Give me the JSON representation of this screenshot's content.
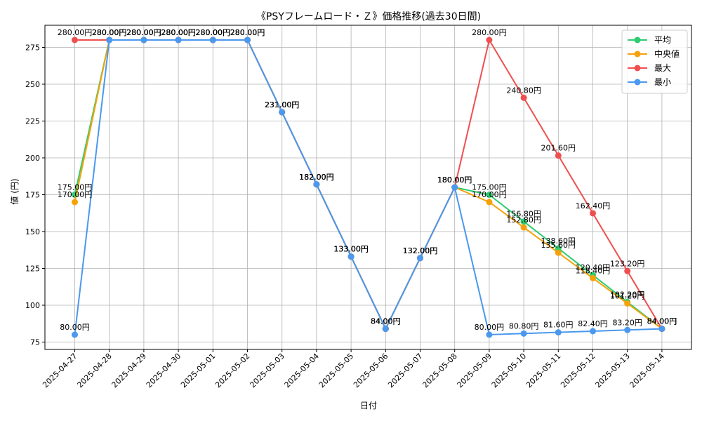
{
  "chart_data": {
    "type": "line",
    "title": "《PSYフレームロード・Ｚ》価格推移(過去30日間)",
    "xlabel": "日付",
    "ylabel": "値 (円)",
    "ylim": [
      70,
      290
    ],
    "yticks": [
      75,
      100,
      125,
      150,
      175,
      200,
      225,
      250,
      275
    ],
    "grid": true,
    "legend_position": "top-right",
    "label_suffix": "円",
    "categories": [
      "2025-04-27",
      "2025-04-28",
      "2025-04-29",
      "2025-04-30",
      "2025-05-01",
      "2025-05-02",
      "2025-05-03",
      "2025-05-04",
      "2025-05-05",
      "2025-05-06",
      "2025-05-07",
      "2025-05-08",
      "2025-05-09",
      "2025-05-10",
      "2025-05-11",
      "2025-05-12",
      "2025-05-13",
      "2025-05-14"
    ],
    "series": [
      {
        "name": "平均",
        "color": "#2ecc71",
        "values": [
          175.0,
          280.0,
          280.0,
          280.0,
          280.0,
          280.0,
          231.0,
          182.0,
          133.0,
          84.0,
          132.0,
          180.0,
          175.0,
          156.8,
          138.6,
          120.4,
          102.2,
          84.0
        ]
      },
      {
        "name": "中央値",
        "color": "#f5a20a",
        "values": [
          170.0,
          280.0,
          280.0,
          280.0,
          280.0,
          280.0,
          231.0,
          182.0,
          133.0,
          84.0,
          132.0,
          180.0,
          170.0,
          152.8,
          135.6,
          118.4,
          101.2,
          84.0
        ]
      },
      {
        "name": "最大",
        "color": "#ef4f4f",
        "values": [
          280.0,
          280.0,
          280.0,
          280.0,
          280.0,
          280.0,
          231.0,
          182.0,
          133.0,
          84.0,
          132.0,
          180.0,
          280.0,
          240.8,
          201.6,
          162.4,
          123.2,
          84.0
        ]
      },
      {
        "name": "最小",
        "color": "#4a98ef",
        "values": [
          80.0,
          280.0,
          280.0,
          280.0,
          280.0,
          280.0,
          231.0,
          182.0,
          133.0,
          84.0,
          132.0,
          180.0,
          80.0,
          80.8,
          81.6,
          82.4,
          83.2,
          84.0
        ]
      }
    ]
  }
}
